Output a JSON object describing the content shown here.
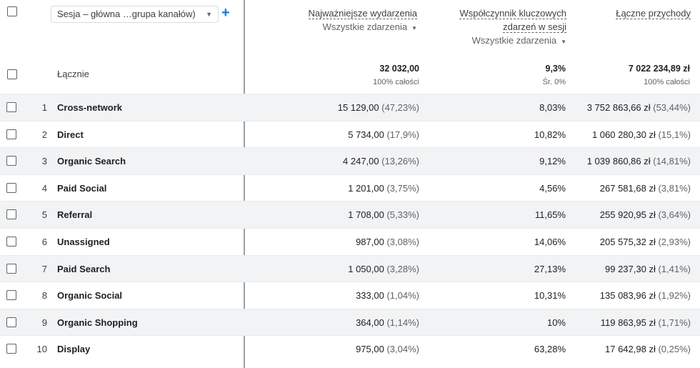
{
  "dimension_selector": {
    "value": "Sesja – główna …grupa kanałów)",
    "add_label": "+"
  },
  "columns": [
    {
      "title": "Najważniejsze wydarzenia",
      "sub": "Wszystkie zdarzenia"
    },
    {
      "title_line1": "Współczynnik kluczowych",
      "title_line2": "zdarzeń w sesji",
      "sub": "Wszystkie zdarzenia"
    },
    {
      "title": "Łączne przychody"
    }
  ],
  "totals": {
    "label": "Łącznie",
    "events": "32 032,00",
    "events_sub": "100% całości",
    "rate": "9,3%",
    "rate_sub": "Śr. 0%",
    "revenue": "7 022 234,89 zł",
    "revenue_sub": "100% całości"
  },
  "rows": [
    {
      "idx": "1",
      "name": "Cross-network",
      "events": "15 129,00",
      "events_pct": "(47,23%)",
      "rate": "8,03%",
      "revenue": "3 752 863,66 zł",
      "revenue_pct": "(53,44%)"
    },
    {
      "idx": "2",
      "name": "Direct",
      "events": "5 734,00",
      "events_pct": "(17,9%)",
      "rate": "10,82%",
      "revenue": "1 060 280,30 zł",
      "revenue_pct": "(15,1%)"
    },
    {
      "idx": "3",
      "name": "Organic Search",
      "events": "4 247,00",
      "events_pct": "(13,26%)",
      "rate": "9,12%",
      "revenue": "1 039 860,86 zł",
      "revenue_pct": "(14,81%)"
    },
    {
      "idx": "4",
      "name": "Paid Social",
      "events": "1 201,00",
      "events_pct": "(3,75%)",
      "rate": "4,56%",
      "revenue": "267 581,68 zł",
      "revenue_pct": "(3,81%)"
    },
    {
      "idx": "5",
      "name": "Referral",
      "events": "1 708,00",
      "events_pct": "(5,33%)",
      "rate": "11,65%",
      "revenue": "255 920,95 zł",
      "revenue_pct": "(3,64%)"
    },
    {
      "idx": "6",
      "name": "Unassigned",
      "events": "987,00",
      "events_pct": "(3,08%)",
      "rate": "14,06%",
      "revenue": "205 575,32 zł",
      "revenue_pct": "(2,93%)"
    },
    {
      "idx": "7",
      "name": "Paid Search",
      "events": "1 050,00",
      "events_pct": "(3,28%)",
      "rate": "27,13%",
      "revenue": "99 237,30 zł",
      "revenue_pct": "(1,41%)"
    },
    {
      "idx": "8",
      "name": "Organic Social",
      "events": "333,00",
      "events_pct": "(1,04%)",
      "rate": "10,31%",
      "revenue": "135 083,96 zł",
      "revenue_pct": "(1,92%)"
    },
    {
      "idx": "9",
      "name": "Organic Shopping",
      "events": "364,00",
      "events_pct": "(1,14%)",
      "rate": "10%",
      "revenue": "119 863,95 zł",
      "revenue_pct": "(1,71%)"
    },
    {
      "idx": "10",
      "name": "Display",
      "events": "975,00",
      "events_pct": "(3,04%)",
      "rate": "63,28%",
      "revenue": "17 642,98 zł",
      "revenue_pct": "(0,25%)"
    }
  ]
}
